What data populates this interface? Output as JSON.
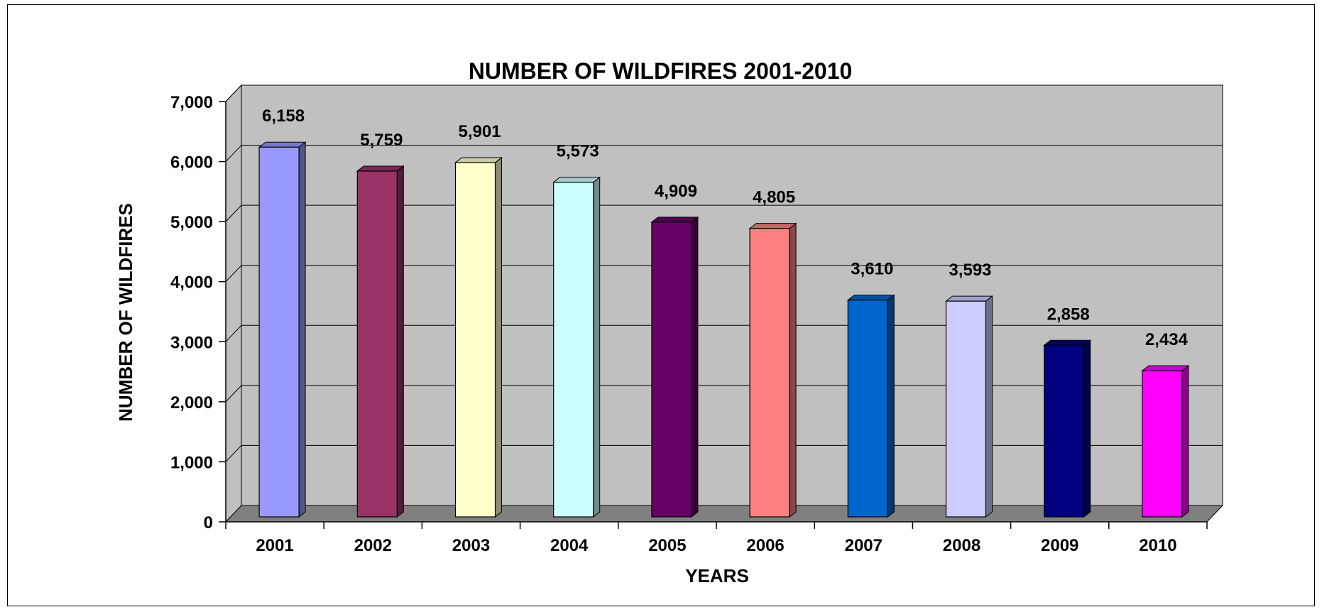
{
  "chart_data": {
    "type": "bar",
    "title": "NUMBER OF WILDFIRES 2001-2010",
    "xlabel": "YEARS",
    "ylabel": "NUMBER OF WILDFIRES",
    "categories": [
      "2001",
      "2002",
      "2003",
      "2004",
      "2005",
      "2006",
      "2007",
      "2008",
      "2009",
      "2010"
    ],
    "values": [
      6158,
      5759,
      5901,
      5573,
      4909,
      4805,
      3610,
      3593,
      2858,
      2434
    ],
    "data_labels": [
      "6,158",
      "5,759",
      "5,901",
      "5,573",
      "4,909",
      "4,805",
      "3,610",
      "3,593",
      "2,858",
      "2,434"
    ],
    "ylim": [
      0,
      7000
    ],
    "yticks": [
      0,
      1000,
      2000,
      3000,
      4000,
      5000,
      6000,
      7000
    ],
    "ytick_labels": [
      "0",
      "1,000",
      "2,000",
      "3,000",
      "4,000",
      "5,000",
      "6,000",
      "7,000"
    ],
    "grid": true,
    "legend": "none",
    "style": "3d-column",
    "colors": [
      "#9999FF",
      "#993366",
      "#FFFFCC",
      "#CCFFFF",
      "#660066",
      "#FF8080",
      "#0066CC",
      "#CCCCFF",
      "#000080",
      "#FF00FF"
    ],
    "wall_color": "#C0C0C0",
    "floor_color": "#808080"
  }
}
